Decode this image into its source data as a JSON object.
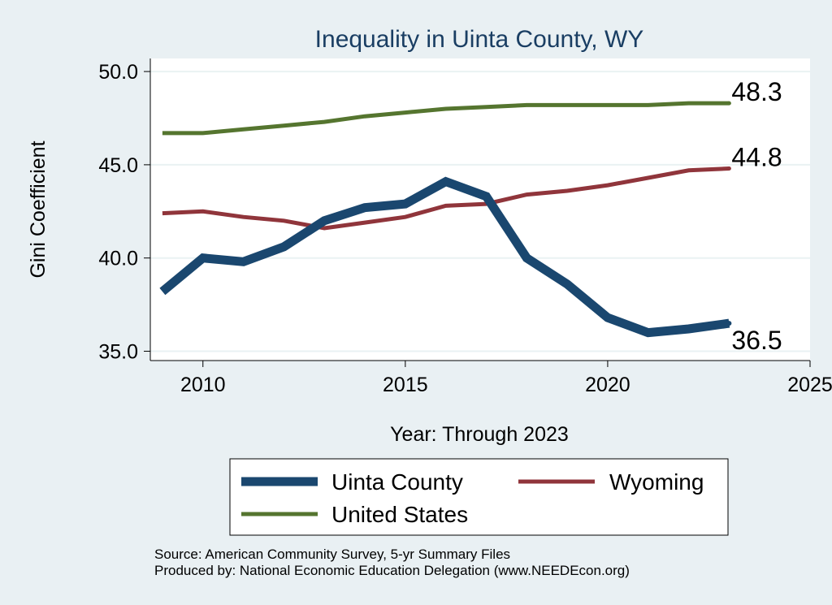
{
  "chart_data": {
    "type": "line",
    "title": "Inequality in Uinta County, WY",
    "xlabel": "Year: Through 2023",
    "ylabel": "Gini Coefficient",
    "xlim": [
      2008.7,
      2025
    ],
    "ylim": [
      34.5,
      50.7
    ],
    "x_ticks": [
      2010,
      2015,
      2020,
      2025
    ],
    "y_ticks": [
      "35.0",
      "40.0",
      "45.0",
      "50.0"
    ],
    "x": [
      2009,
      2010,
      2011,
      2012,
      2013,
      2014,
      2015,
      2016,
      2017,
      2018,
      2019,
      2020,
      2021,
      2022,
      2023
    ],
    "series": [
      {
        "name": "Uinta County",
        "color": "#1a476f",
        "values": [
          38.2,
          40.0,
          39.8,
          40.6,
          42.0,
          42.7,
          42.9,
          44.1,
          43.3,
          40.0,
          38.6,
          36.8,
          36.0,
          36.2,
          36.5
        ],
        "end_label": "36.5"
      },
      {
        "name": "Wyoming",
        "color": "#90353b",
        "values": [
          42.4,
          42.5,
          42.2,
          42.0,
          41.6,
          41.9,
          42.2,
          42.8,
          42.9,
          43.4,
          43.6,
          43.9,
          44.3,
          44.7,
          44.8
        ],
        "end_label": "44.8"
      },
      {
        "name": "United States",
        "color": "#55752f",
        "values": [
          46.7,
          46.7,
          46.9,
          47.1,
          47.3,
          47.6,
          47.8,
          48.0,
          48.1,
          48.2,
          48.2,
          48.2,
          48.2,
          48.3,
          48.3
        ],
        "end_label": "48.3"
      }
    ],
    "legend": {
      "position": "bottom",
      "items": [
        "Uinta County",
        "Wyoming",
        "United States"
      ]
    },
    "notes": [
      "Source: American Community Survey, 5-yr Summary Files",
      "Produced by: National Economic Education Delegation (www.NEEDEcon.org)"
    ]
  }
}
